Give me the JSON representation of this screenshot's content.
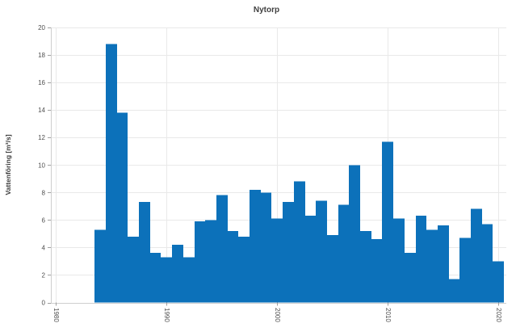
{
  "chart_data": {
    "type": "bar",
    "title": "Nytorp",
    "xlabel": "",
    "ylabel": "Vattenföring [m³/s]",
    "x": [
      1984,
      1985,
      1986,
      1987,
      1988,
      1989,
      1990,
      1991,
      1992,
      1993,
      1994,
      1995,
      1996,
      1997,
      1998,
      1999,
      2000,
      2001,
      2002,
      2003,
      2004,
      2005,
      2006,
      2007,
      2008,
      2009,
      2010,
      2011,
      2012,
      2013,
      2014,
      2015,
      2016,
      2017,
      2018,
      2019,
      2020
    ],
    "values": [
      5.3,
      18.8,
      13.8,
      4.8,
      7.3,
      3.6,
      3.3,
      4.2,
      3.3,
      5.9,
      6.0,
      7.8,
      5.2,
      4.8,
      8.2,
      8.0,
      6.1,
      7.3,
      8.8,
      6.3,
      7.4,
      4.9,
      7.1,
      10.0,
      5.2,
      4.6,
      11.7,
      6.1,
      3.6,
      6.3,
      5.3,
      5.6,
      1.7,
      4.7,
      6.8,
      5.7,
      3.0
    ],
    "ylim": [
      0,
      20
    ],
    "yticks": [
      0,
      2,
      4,
      6,
      8,
      10,
      12,
      14,
      16,
      18,
      20
    ],
    "xticks": [
      1980,
      1990,
      2000,
      2010,
      2020
    ],
    "grid": "on",
    "legend": "none",
    "bar_color": "#0c71ba",
    "grid_color": "#e9e9e9",
    "axis_line_color": "#cfcfcf",
    "tick_mark_color": "#a0a0a0",
    "tick_label_color": "#4f4f4f",
    "title_color": "#3f3f3f",
    "background_color": "#ffffff"
  }
}
